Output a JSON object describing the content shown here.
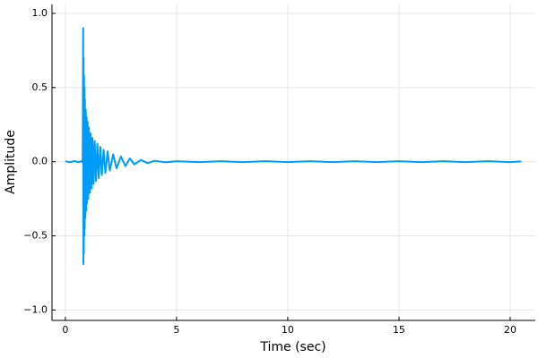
{
  "chart_data": {
    "type": "line",
    "xlabel": "Time (sec)",
    "ylabel": "Amplitude",
    "x": [
      0,
      0.2,
      0.4,
      0.6,
      0.75,
      0.78,
      0.8,
      0.81,
      0.82,
      0.83,
      0.84,
      0.85,
      0.86,
      0.87,
      0.88,
      0.9,
      0.92,
      0.94,
      0.96,
      0.98,
      1.0,
      1.03,
      1.06,
      1.1,
      1.14,
      1.18,
      1.22,
      1.27,
      1.32,
      1.38,
      1.44,
      1.5,
      1.57,
      1.64,
      1.72,
      1.8,
      1.9,
      2.0,
      2.15,
      2.3,
      2.5,
      2.7,
      2.9,
      3.1,
      3.4,
      3.7,
      4.0,
      4.5,
      5,
      6,
      7,
      8,
      9,
      10,
      11,
      12,
      13,
      14,
      15,
      16,
      17,
      18,
      19,
      20,
      20.5
    ],
    "y": [
      0.003,
      -0.004,
      0.004,
      -0.003,
      0.005,
      -0.006,
      0.9,
      -0.69,
      0.7,
      -0.62,
      0.58,
      -0.5,
      0.5,
      -0.45,
      0.42,
      -0.38,
      0.35,
      -0.33,
      0.3,
      -0.28,
      0.27,
      -0.25,
      0.23,
      -0.21,
      0.19,
      -0.18,
      0.16,
      -0.15,
      0.14,
      -0.13,
      0.12,
      -0.11,
      0.1,
      -0.09,
      0.08,
      -0.075,
      0.07,
      -0.06,
      0.05,
      -0.045,
      0.035,
      -0.03,
      0.022,
      -0.018,
      0.012,
      -0.01,
      0.006,
      -0.004,
      0.003,
      -0.003,
      0.003,
      -0.003,
      0.003,
      -0.003,
      0.003,
      -0.003,
      0.003,
      -0.003,
      0.003,
      -0.003,
      0.003,
      -0.003,
      0.003,
      -0.003,
      0.002
    ],
    "color": "#009af9",
    "xlim": [
      -0.6,
      21.13
    ],
    "ylim": [
      -1.07,
      1.06
    ],
    "xticks": [
      0,
      5,
      10,
      15,
      20
    ],
    "yticks": [
      {
        "value": -1,
        "label": "−1.0"
      },
      {
        "value": -0.5,
        "label": "−0.5"
      },
      {
        "value": 0,
        "label": "0.0"
      },
      {
        "value": 0.5,
        "label": "0.5"
      },
      {
        "value": 1,
        "label": "1.0"
      }
    ],
    "grid": true
  }
}
